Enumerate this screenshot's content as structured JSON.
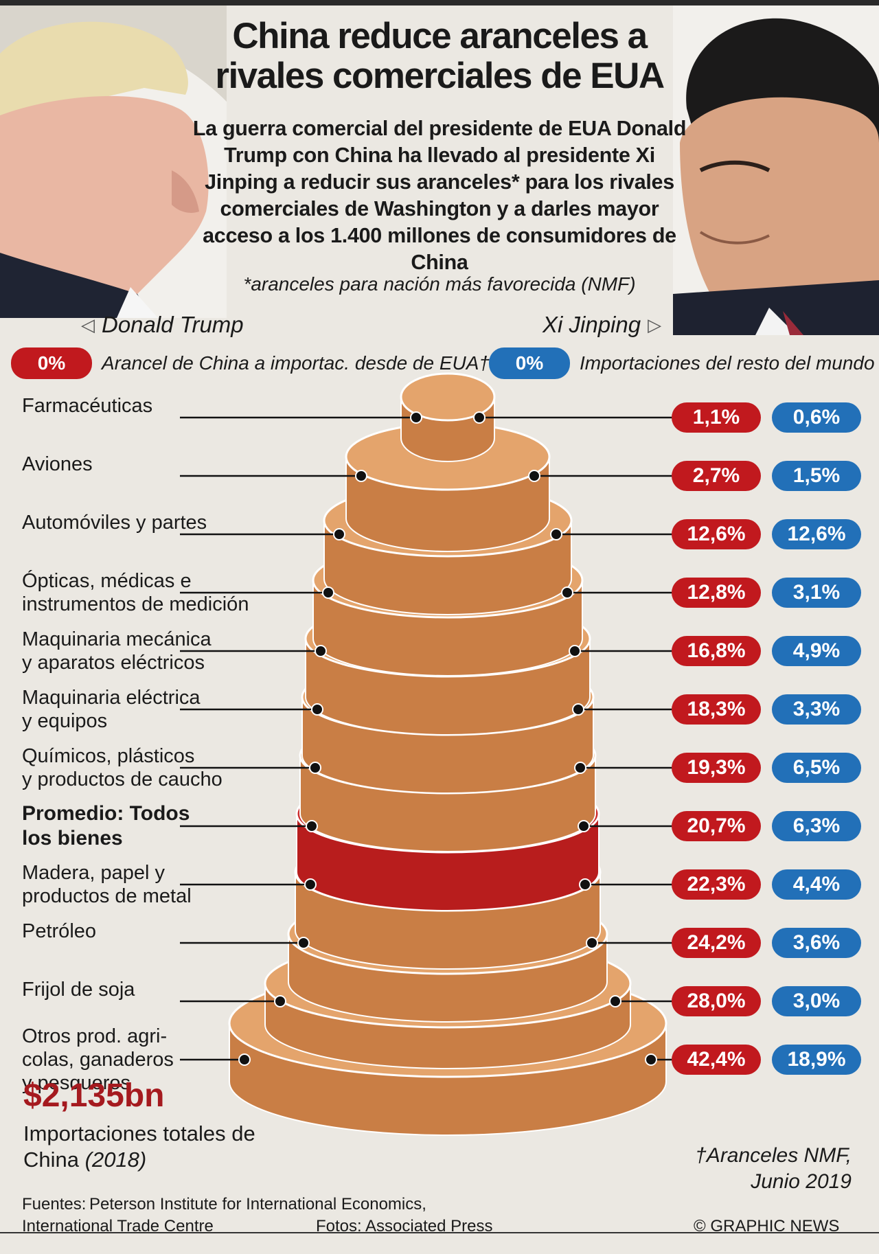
{
  "header": {
    "title": "China reduce aranceles a rivales comerciales de EUA",
    "intro": "La guerra comercial del presidente de EUA Donald Trump con China ha llevado al presidente Xi Jinping a reducir sus aranceles* para los rivales comerciales de Washington y a darles mayor acceso a los 1.400 millones de consumidores de China",
    "intro_note": "*aranceles para nación más favorecida (NMF)"
  },
  "people": {
    "left": "Donald Trump",
    "right": "Xi Jinping"
  },
  "legend": {
    "red_pill": "0%",
    "red_label": "Arancel de China a importac. desde de EUA†",
    "blue_pill": "0%",
    "blue_label": "Importaciones del resto del mundo"
  },
  "colors": {
    "us": "#c1191e",
    "rest": "#2270b8",
    "layer": "#e4a46c",
    "layer_side": "#c97e45",
    "average": "#cc2b2b"
  },
  "chart_data": {
    "type": "table",
    "columns": [
      "Arancel de China a importac. desde de EUA†",
      "Importaciones del resto del mundo"
    ],
    "rows": [
      {
        "category": "Farmacéuticas",
        "us": "1,1%",
        "rest": "0,6%"
      },
      {
        "category": "Aviones",
        "us": "2,7%",
        "rest": "1,5%"
      },
      {
        "category": "Automóviles y partes",
        "us": "12,6%",
        "rest": "12,6%"
      },
      {
        "category": "Ópticas, médicas e\ninstrumentos de medición",
        "us": "12,8%",
        "rest": "3,1%"
      },
      {
        "category": "Maquinaria mecánica\ny aparatos eléctricos",
        "us": "16,8%",
        "rest": "4,9%"
      },
      {
        "category": "Maquinaria eléctrica\ny equipos",
        "us": "18,3%",
        "rest": "3,3%"
      },
      {
        "category": "Químicos, plásticos\ny productos de caucho",
        "us": "19,3%",
        "rest": "6,5%"
      },
      {
        "category": "Promedio: Todos\nlos bienes",
        "us": "20,7%",
        "rest": "6,3%"
      },
      {
        "category": "Madera, papel y\nproductos de metal",
        "us": "22,3%",
        "rest": "4,4%"
      },
      {
        "category": "Petróleo",
        "us": "24,2%",
        "rest": "3,6%"
      },
      {
        "category": "Frijol de soja",
        "us": "28,0%",
        "rest": "3,0%"
      },
      {
        "category": "Otros prod. agri-\ncolas, ganaderos\ny pesqueros",
        "us": "42,4%",
        "rest": "18,9%"
      }
    ],
    "us_values": [
      1.1,
      2.7,
      12.6,
      12.8,
      16.8,
      18.3,
      19.3,
      20.7,
      22.3,
      24.2,
      28.0,
      42.4
    ],
    "rest_values": [
      0.6,
      1.5,
      12.6,
      3.1,
      4.9,
      3.3,
      6.5,
      6.3,
      4.4,
      3.6,
      3.0,
      18.9
    ]
  },
  "total": {
    "value": "$2,135bn",
    "label": "Importaciones totales de China",
    "year": "(2018)"
  },
  "footnote": {
    "line1": "†Aranceles NMF,",
    "line2": "Junio 2019"
  },
  "footer": {
    "sources_label": "Fuentes:",
    "source1": "Peterson Institute for International Economics,",
    "source2": "International Trade Centre",
    "photos": "Fotos: Associated Press",
    "credit": "© GRAPHIC NEWS"
  }
}
